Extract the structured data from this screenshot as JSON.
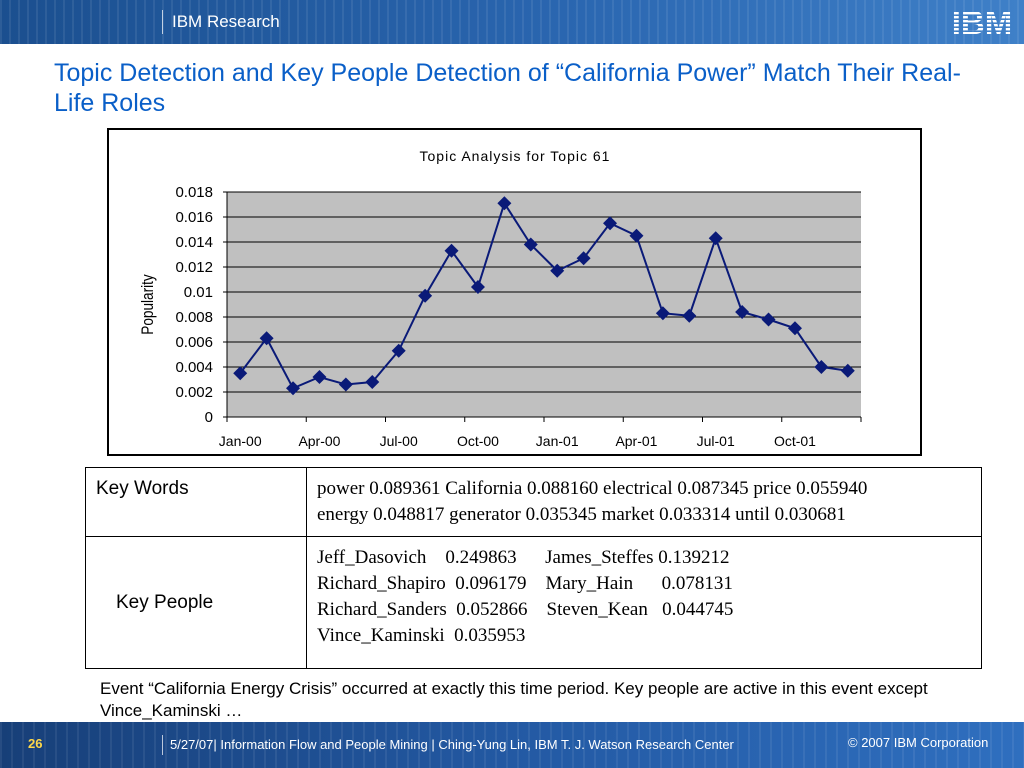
{
  "header": {
    "brand": "IBM Research",
    "logo_text": "IBM"
  },
  "slide_title": "Topic Detection and Key People Detection of “California Power” Match Their Real-Life Roles",
  "chart_data": {
    "type": "line",
    "title": "Topic Analysis for Topic 61",
    "xlabel": "",
    "ylabel": "Popularity",
    "ylim": [
      0,
      0.018
    ],
    "yticks": [
      "0",
      "0.002",
      "0.004",
      "0.006",
      "0.008",
      "0.01",
      "0.012",
      "0.014",
      "0.016",
      "0.018"
    ],
    "x_tick_labels": [
      "Jan-00",
      "Apr-00",
      "Jul-00",
      "Oct-00",
      "Jan-01",
      "Apr-01",
      "Jul-01",
      "Oct-01"
    ],
    "grid": true,
    "series": [
      {
        "values": [
          0.0035,
          0.0063,
          0.0023,
          0.0032,
          0.0026,
          0.0028,
          0.0053,
          0.0097,
          0.0133,
          0.0104,
          0.0171,
          0.0138,
          0.0117,
          0.0127,
          0.0155,
          0.0145,
          0.0083,
          0.0081,
          0.0143,
          0.0084,
          0.0078,
          0.0071,
          0.004,
          0.0037
        ]
      }
    ],
    "colors": {
      "line": "#0a1a78",
      "marker": "#0a1a78",
      "plot_bg": "#c0c0c0"
    }
  },
  "table": {
    "rows": [
      {
        "label": "Key Words",
        "lines": [
          "power 0.089361 California 0.088160 electrical 0.087345 price 0.055940",
          "energy 0.048817 generator 0.035345 market 0.033314 until 0.030681"
        ]
      },
      {
        "label": "Key People",
        "lines": [
          "Jeff_Dasovich    0.249863      James_Steffes 0.139212",
          "Richard_Shapiro  0.096179    Mary_Hain      0.078131",
          "Richard_Sanders  0.052866    Steven_Kean   0.044745",
          "Vince_Kaminski  0.035953"
        ]
      }
    ]
  },
  "caption": "Event “California Energy Crisis” occurred at exactly this time period. Key people are active in this event except Vince_Kaminski …",
  "footer": {
    "page": "26",
    "text": "5/27/07| Information Flow and People Mining | Ching-Yung Lin, IBM T. J. Watson Research Center",
    "copyright": "© 2007 IBM Corporation"
  }
}
